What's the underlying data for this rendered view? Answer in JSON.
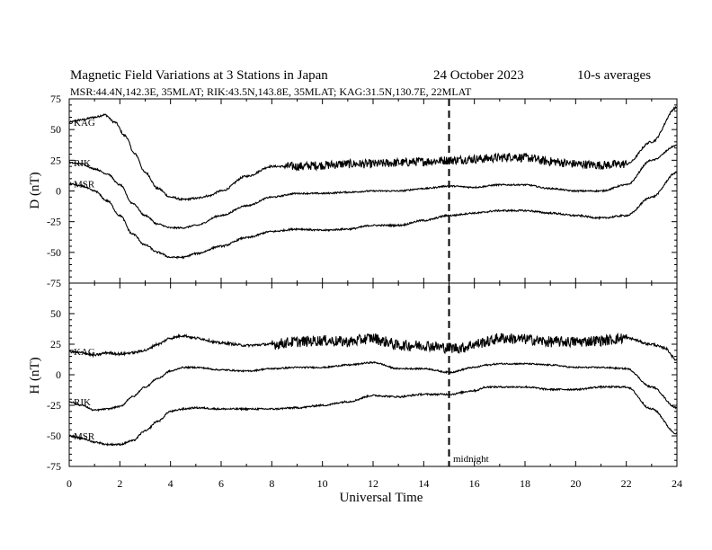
{
  "chart_data": {
    "type": "line",
    "title": "Magnetic Field Variations at 3 Stations in Japan",
    "date": "24 October 2023",
    "averaging": "10-s averages",
    "subtitle": "MSR:44.4N,142.3E, 35MLAT;  RIK:43.5N,143.8E, 35MLAT;  KAG:31.5N,130.7E, 22MLAT",
    "xlabel": "Universal Time",
    "x_ticks": [
      "0",
      "2",
      "4",
      "6",
      "8",
      "10",
      "12",
      "14",
      "16",
      "18",
      "20",
      "22",
      "24"
    ],
    "xlim": [
      0,
      24
    ],
    "vline": {
      "x": 15,
      "label": "midnight",
      "style": "dashed"
    },
    "panels": [
      {
        "ylabel": "D (nT)",
        "ylim": [
          -75,
          75
        ],
        "y_ticks": [
          "75",
          "50",
          "25",
          "0",
          "-25",
          "-50",
          "-75"
        ],
        "series": [
          {
            "name": "KAG",
            "noise": 0.8,
            "noisy_after": [
              8.5,
              22
            ],
            "x": [
              0,
              0.5,
              1,
              1.4,
              1.8,
              2.2,
              2.6,
              3,
              3.5,
              4,
              4.5,
              5,
              5.5,
              6,
              7,
              8,
              9,
              10,
              11,
              12,
              13,
              14,
              15,
              16,
              17,
              17.5,
              18,
              19,
              20,
              21,
              22,
              23,
              24
            ],
            "y": [
              56,
              58,
              60,
              62,
              56,
              45,
              30,
              15,
              2,
              -5,
              -7,
              -6,
              -4,
              0,
              12,
              20,
              20,
              21,
              22,
              22,
              23,
              24,
              25,
              26,
              27,
              28,
              27,
              24,
              22,
              21,
              22,
              40,
              68
            ]
          },
          {
            "name": "RIK",
            "noise": 0.6,
            "x": [
              0,
              0.5,
              1,
              1.5,
              2,
              2.5,
              3,
              3.5,
              4,
              4.5,
              5,
              6,
              7,
              8,
              9,
              10,
              11,
              12,
              13,
              14,
              15,
              16,
              17,
              18,
              19,
              20,
              21,
              22,
              23,
              24
            ],
            "y": [
              23,
              22,
              18,
              14,
              5,
              -10,
              -20,
              -27,
              -30,
              -30,
              -28,
              -20,
              -12,
              -5,
              -2,
              -2,
              -1,
              0,
              0,
              2,
              4,
              3,
              5,
              5,
              2,
              0,
              0,
              5,
              25,
              37
            ]
          },
          {
            "name": "MSR",
            "noise": 0.7,
            "x": [
              0,
              0.5,
              1,
              1.5,
              2,
              2.5,
              3,
              3.5,
              4,
              4.5,
              5,
              6,
              7,
              8,
              9,
              10,
              11,
              12,
              13,
              14,
              15,
              16,
              17,
              18,
              19,
              20,
              21,
              22,
              23,
              24
            ],
            "y": [
              6,
              4,
              0,
              -8,
              -20,
              -35,
              -44,
              -50,
              -54,
              -54,
              -51,
              -45,
              -38,
              -33,
              -31,
              -32,
              -31,
              -28,
              -28,
              -24,
              -20,
              -18,
              -16,
              -16,
              -18,
              -20,
              -22,
              -20,
              -5,
              15
            ]
          }
        ]
      },
      {
        "ylabel": "H (nT)",
        "ylim": [
          -75,
          75
        ],
        "y_ticks": [
          "75",
          "50",
          "25",
          "0",
          "-25",
          "-50",
          "-75"
        ],
        "series": [
          {
            "name": "KAG",
            "noise": 1.0,
            "noisy_after": [
              8,
              22
            ],
            "x": [
              0,
              0.5,
              1,
              1.5,
              2,
              2.5,
              3,
              3.5,
              4,
              4.5,
              5,
              6,
              7,
              8,
              9,
              10,
              11,
              12,
              12.5,
              13,
              14,
              15,
              15.5,
              16,
              16.5,
              17,
              18,
              19,
              20,
              21,
              22,
              23,
              23.5,
              24
            ],
            "y": [
              19,
              18,
              16,
              18,
              17,
              18,
              20,
              25,
              30,
              32,
              30,
              26,
              24,
              25,
              27,
              28,
              27,
              30,
              27,
              24,
              24,
              22,
              22,
              25,
              27,
              30,
              29,
              27,
              27,
              28,
              30,
              25,
              22,
              12
            ]
          },
          {
            "name": "RIK",
            "noise": 0.6,
            "x": [
              0,
              0.5,
              1,
              1.5,
              2,
              2.5,
              3,
              3.5,
              4,
              4.5,
              5,
              6,
              7,
              8,
              9,
              10,
              11,
              12,
              13,
              14,
              15,
              16,
              16.5,
              17,
              18,
              19,
              20,
              21,
              22,
              23,
              24
            ],
            "y": [
              -22,
              -25,
              -29,
              -28,
              -26,
              -18,
              -10,
              -3,
              3,
              6,
              6,
              4,
              3,
              5,
              6,
              6,
              8,
              10,
              5,
              5,
              2,
              6,
              8,
              9,
              9,
              8,
              6,
              6,
              5,
              -10,
              -27
            ]
          },
          {
            "name": "MSR",
            "noise": 0.7,
            "x": [
              0,
              0.5,
              1,
              1.5,
              2,
              2.5,
              3,
              3.5,
              4,
              4.5,
              5,
              6,
              7,
              8,
              9,
              10,
              11,
              12,
              13,
              14,
              15,
              16,
              16.5,
              17,
              18,
              19,
              20,
              21,
              22,
              23,
              24
            ],
            "y": [
              -50,
              -52,
              -55,
              -57,
              -57,
              -54,
              -46,
              -38,
              -30,
              -28,
              -27,
              -28,
              -28,
              -28,
              -27,
              -25,
              -22,
              -17,
              -18,
              -16,
              -16,
              -13,
              -10,
              -10,
              -10,
              -12,
              -12,
              -10,
              -10,
              -28,
              -48
            ]
          }
        ]
      }
    ]
  }
}
